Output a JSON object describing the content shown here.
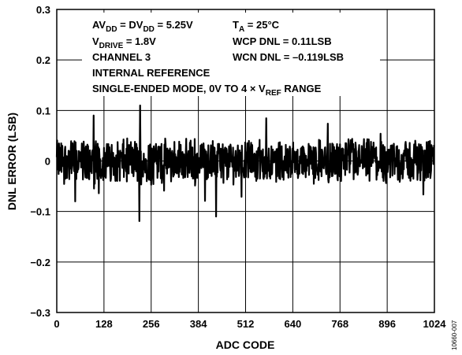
{
  "chart_data": {
    "type": "line",
    "xlabel": "ADC CODE",
    "ylabel": "DNL ERROR (LSB)",
    "xlim": [
      0,
      1024
    ],
    "ylim": [
      -0.3,
      0.3
    ],
    "x_ticks": [
      0,
      128,
      256,
      384,
      512,
      640,
      768,
      896,
      1024
    ],
    "y_ticks": [
      0.3,
      0.2,
      0.1,
      0,
      -0.1,
      -0.2,
      -0.3
    ],
    "y_tick_labels": [
      "0.3",
      "0.2",
      "0.1",
      "0",
      "−0.1",
      "−0.2",
      "−0.3"
    ],
    "grid": true,
    "figure_id": "10660-007",
    "annotations": {
      "line1_a_main": "AV",
      "line1_a_sub": "DD",
      "line1_b_main": " = DV",
      "line1_b_sub": "DD",
      "line1_c_main": " = 5.25V",
      "line1_d_main": "T",
      "line1_d_sub": "A",
      "line1_e_main": " = 25°C",
      "line2_a_main": "V",
      "line2_a_sub": "DRIVE",
      "line2_b_main": " = 1.8V",
      "line2_c_main": "WCP DNL = 0.11LSB",
      "line3_a_main": "CHANNEL 3",
      "line3_b_main": "WCN DNL = –0.119LSB",
      "line4_main": "INTERNAL REFERENCE",
      "line5_a_main": "SINGLE-ENDED MODE, 0V TO 4 × V",
      "line5_a_sub": "REF",
      "line5_b_main": " RANGE"
    },
    "series": [
      {
        "values_desc": "DNL per code",
        "envelope_note": "noise band approx ±0.04 LSB",
        "peaks": [
          {
            "x": 226,
            "y": 0.11
          },
          {
            "x": 224,
            "y": -0.119
          },
          {
            "x": 432,
            "y": -0.11
          },
          {
            "x": 50,
            "y": -0.08
          },
          {
            "x": 100,
            "y": 0.09
          }
        ]
      }
    ]
  }
}
